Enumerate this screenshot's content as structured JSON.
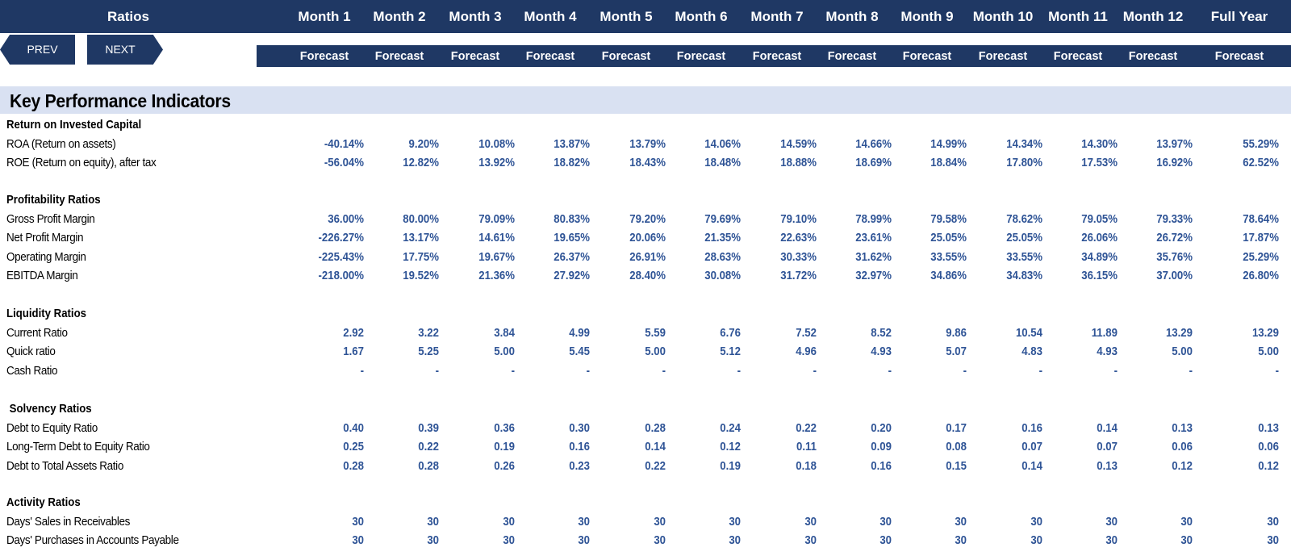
{
  "header": {
    "title": "Ratios",
    "columns": [
      "Month 1",
      "Month 2",
      "Month 3",
      "Month 4",
      "Month 5",
      "Month 6",
      "Month 7",
      "Month 8",
      "Month 9",
      "Month 10",
      "Month 11",
      "Month 12",
      "Full Year"
    ],
    "subheaders": [
      "Forecast",
      "Forecast",
      "Forecast",
      "Forecast",
      "Forecast",
      "Forecast",
      "Forecast",
      "Forecast",
      "Forecast",
      "Forecast",
      "Forecast",
      "Forecast",
      "Forecast"
    ]
  },
  "nav": {
    "prev_label": "PREV",
    "next_label": "NEXT"
  },
  "kpi_title": "Key Performance Indicators",
  "sections": [
    {
      "title": "Return on Invested Capital",
      "rows": [
        {
          "label": "ROA (Return on assets)",
          "values": [
            "-40.14%",
            "9.20%",
            "10.08%",
            "13.87%",
            "13.79%",
            "14.06%",
            "14.59%",
            "14.66%",
            "14.99%",
            "14.34%",
            "14.30%",
            "13.97%",
            "55.29%"
          ]
        },
        {
          "label": "ROE (Return on equity), after tax",
          "values": [
            "-56.04%",
            "12.82%",
            "13.92%",
            "18.82%",
            "18.43%",
            "18.48%",
            "18.88%",
            "18.69%",
            "18.84%",
            "17.80%",
            "17.53%",
            "16.92%",
            "62.52%"
          ]
        }
      ]
    },
    {
      "title": "Profitability Ratios",
      "rows": [
        {
          "label": "Gross Profit Margin",
          "values": [
            "36.00%",
            "80.00%",
            "79.09%",
            "80.83%",
            "79.20%",
            "79.69%",
            "79.10%",
            "78.99%",
            "79.58%",
            "78.62%",
            "79.05%",
            "79.33%",
            "78.64%"
          ]
        },
        {
          "label": "Net Profit Margin",
          "values": [
            "-226.27%",
            "13.17%",
            "14.61%",
            "19.65%",
            "20.06%",
            "21.35%",
            "22.63%",
            "23.61%",
            "25.05%",
            "25.05%",
            "26.06%",
            "26.72%",
            "17.87%"
          ]
        },
        {
          "label": "Operating Margin",
          "values": [
            "-225.43%",
            "17.75%",
            "19.67%",
            "26.37%",
            "26.91%",
            "28.63%",
            "30.33%",
            "31.62%",
            "33.55%",
            "33.55%",
            "34.89%",
            "35.76%",
            "25.29%"
          ]
        },
        {
          "label": "EBITDA Margin",
          "values": [
            "-218.00%",
            "19.52%",
            "21.36%",
            "27.92%",
            "28.40%",
            "30.08%",
            "31.72%",
            "32.97%",
            "34.86%",
            "34.83%",
            "36.15%",
            "37.00%",
            "26.80%"
          ]
        }
      ]
    },
    {
      "title": "Liquidity Ratios",
      "rows": [
        {
          "label": "Current Ratio",
          "values": [
            "2.92",
            "3.22",
            "3.84",
            "4.99",
            "5.59",
            "6.76",
            "7.52",
            "8.52",
            "9.86",
            "10.54",
            "11.89",
            "13.29",
            "13.29"
          ]
        },
        {
          "label": "Quick ratio",
          "values": [
            "1.67",
            "5.25",
            "5.00",
            "5.45",
            "5.00",
            "5.12",
            "4.96",
            "4.93",
            "5.07",
            "4.83",
            "4.93",
            "5.00",
            "5.00"
          ]
        },
        {
          "label": "Cash Ratio",
          "values": [
            "-",
            "-",
            "-",
            "-",
            "-",
            "-",
            "-",
            "-",
            "-",
            "-",
            "-",
            "-",
            "-"
          ]
        }
      ]
    },
    {
      "title": " Solvency Ratios",
      "rows": [
        {
          "label": "Debt to Equity Ratio",
          "values": [
            "0.40",
            "0.39",
            "0.36",
            "0.30",
            "0.28",
            "0.24",
            "0.22",
            "0.20",
            "0.17",
            "0.16",
            "0.14",
            "0.13",
            "0.13"
          ]
        },
        {
          "label": "Long-Term Debt to Equity Ratio",
          "values": [
            "0.25",
            "0.22",
            "0.19",
            "0.16",
            "0.14",
            "0.12",
            "0.11",
            "0.09",
            "0.08",
            "0.07",
            "0.07",
            "0.06",
            "0.06"
          ]
        },
        {
          "label": "Debt to Total Assets Ratio",
          "values": [
            "0.28",
            "0.28",
            "0.26",
            "0.23",
            "0.22",
            "0.19",
            "0.18",
            "0.16",
            "0.15",
            "0.14",
            "0.13",
            "0.12",
            "0.12"
          ]
        }
      ]
    },
    {
      "title": "Activity Ratios",
      "rows": [
        {
          "label": "Days' Sales in Receivables",
          "values": [
            "30",
            "30",
            "30",
            "30",
            "30",
            "30",
            "30",
            "30",
            "30",
            "30",
            "30",
            "30",
            "30"
          ]
        },
        {
          "label": "Days' Purchases in Accounts Payable",
          "values": [
            "30",
            "30",
            "30",
            "30",
            "30",
            "30",
            "30",
            "30",
            "30",
            "30",
            "30",
            "30",
            "30"
          ]
        }
      ]
    }
  ]
}
